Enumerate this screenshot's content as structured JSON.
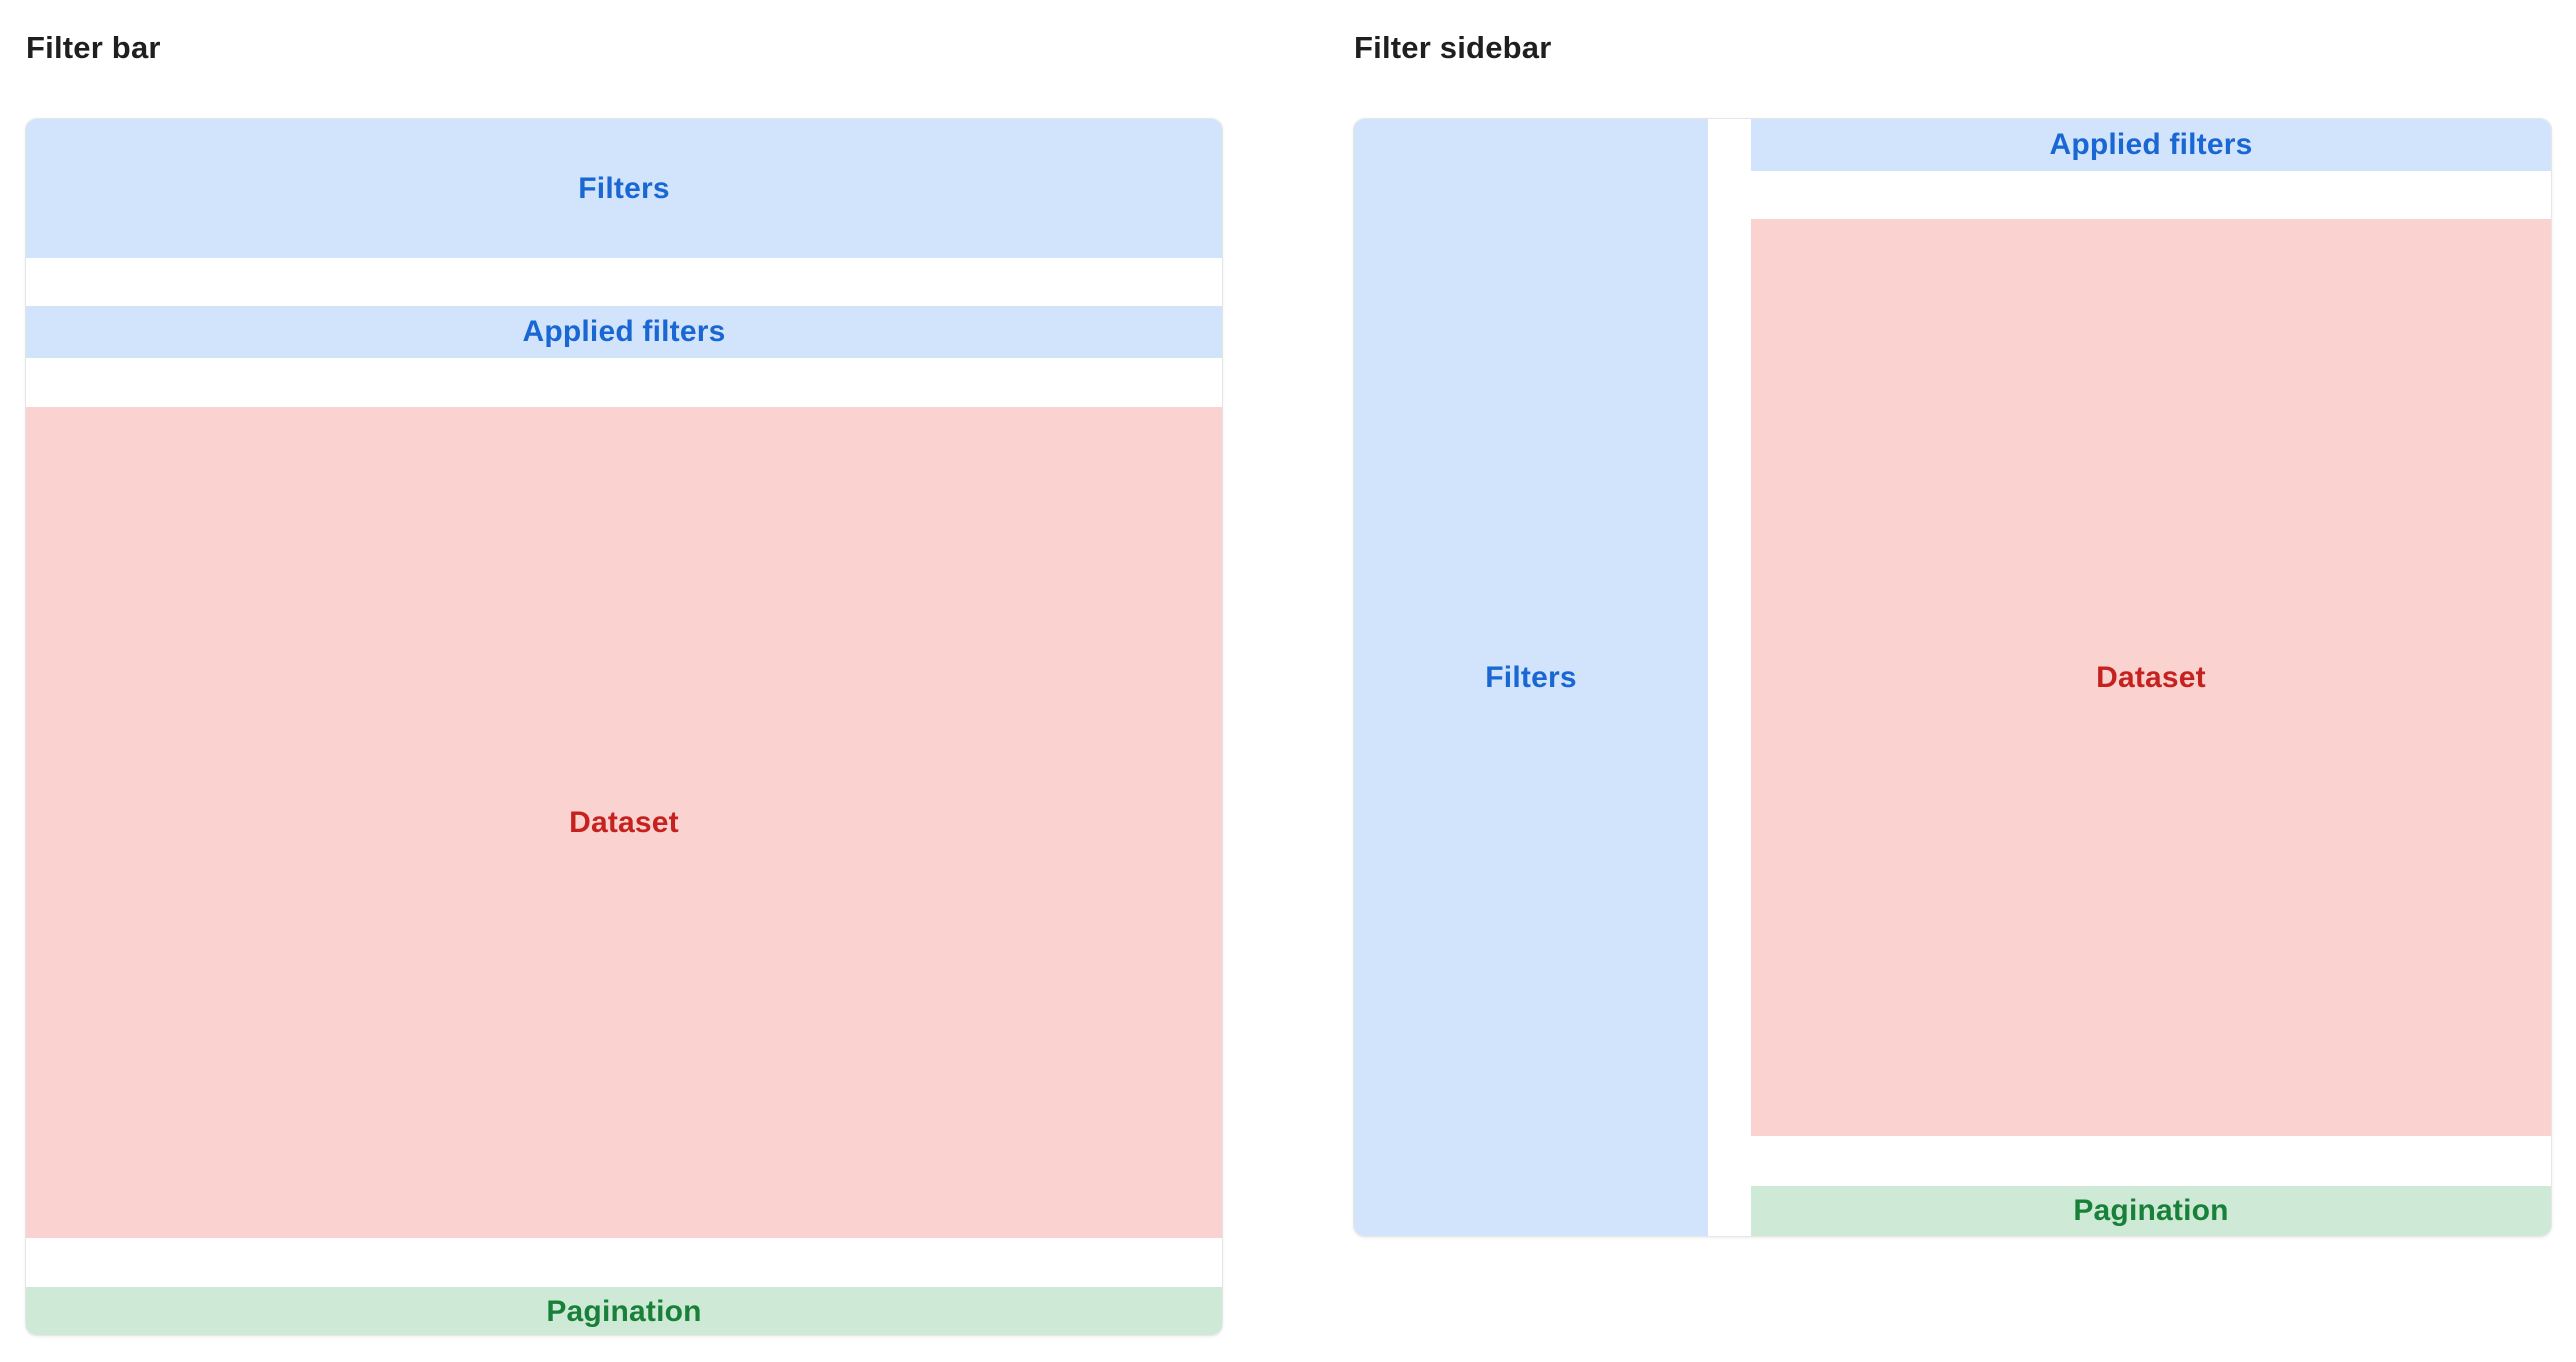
{
  "left_panel": {
    "title": "Filter bar",
    "filters_label": "Filters",
    "applied_label": "Applied filters",
    "dataset_label": "Dataset",
    "pagination_label": "Pagination"
  },
  "right_panel": {
    "title": "Filter sidebar",
    "filters_label": "Filters",
    "applied_label": "Applied filters",
    "dataset_label": "Dataset",
    "pagination_label": "Pagination"
  },
  "colors": {
    "blue_bg": "#d2e3fc",
    "blue_text": "#1967d2",
    "red_bg": "#fad2cf",
    "red_text": "#c5221f",
    "green_bg": "#ceead6",
    "green_text": "#188038",
    "title_text": "#1f1f1f",
    "border": "#e6e6e6"
  }
}
